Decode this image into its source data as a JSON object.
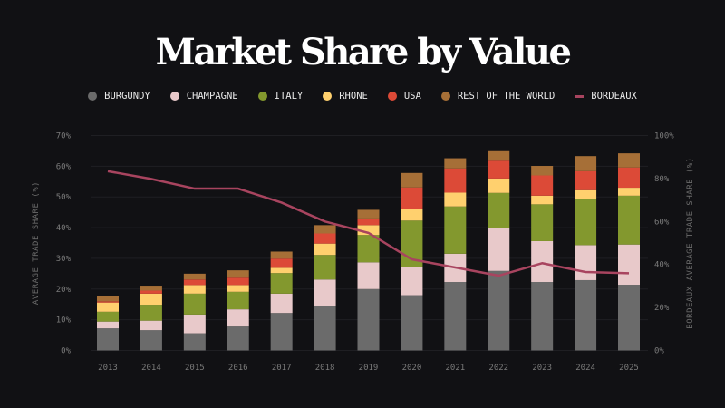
{
  "chart_data": {
    "type": "bar",
    "stacked": true,
    "title": "Market Share by Value",
    "ylabel": "AVERAGE TRADE SHARE (%)",
    "y2label": "BORDEAUX AVERAGE TRADE SHARE (%)",
    "ylim": [
      0,
      70
    ],
    "y2lim": [
      0,
      100
    ],
    "yticks": [
      "0%",
      "10%",
      "20%",
      "30%",
      "40%",
      "50%",
      "60%",
      "70%"
    ],
    "y2ticks": [
      "0%",
      "20%",
      "40%",
      "60%",
      "80%",
      "100%"
    ],
    "grid": true,
    "legend_position": "top",
    "categories": [
      "2013",
      "2014",
      "2015",
      "2016",
      "2017",
      "2018",
      "2019",
      "2020",
      "2021",
      "2022",
      "2023",
      "2024",
      "2025"
    ],
    "series": [
      {
        "name": "BURGUNDY",
        "color": "#6b6b6b",
        "values": [
          7.2,
          6.6,
          5.6,
          7.8,
          12.2,
          14.6,
          20.0,
          18.0,
          22.3,
          25.9,
          22.3,
          22.9,
          21.4
        ]
      },
      {
        "name": "CHAMPAGNE",
        "color": "#e8c9ca",
        "values": [
          2.2,
          3.1,
          6.1,
          5.6,
          6.3,
          8.5,
          8.7,
          9.3,
          9.2,
          14.1,
          13.3,
          11.4,
          13.1
        ]
      },
      {
        "name": "ITALY",
        "color": "#83982e",
        "values": [
          3.2,
          5.2,
          6.8,
          5.7,
          6.7,
          8.0,
          8.9,
          15.0,
          15.4,
          11.3,
          12.0,
          15.1,
          15.9
        ]
      },
      {
        "name": "RHONE",
        "color": "#ffd06e",
        "values": [
          3.0,
          3.6,
          2.8,
          2.2,
          1.7,
          3.7,
          3.2,
          3.8,
          4.5,
          4.7,
          2.8,
          2.8,
          2.6
        ]
      },
      {
        "name": "USA",
        "color": "#dc4a37",
        "values": [
          0.4,
          1.0,
          1.8,
          2.4,
          3.0,
          3.3,
          2.2,
          7.0,
          7.9,
          5.8,
          6.6,
          6.2,
          6.6
        ]
      },
      {
        "name": "REST OF THE WORLD",
        "color": "#a66f37",
        "values": [
          1.8,
          1.6,
          1.9,
          2.4,
          2.3,
          2.7,
          2.8,
          4.7,
          3.3,
          3.4,
          3.1,
          4.9,
          4.6
        ]
      }
    ],
    "line_series": {
      "name": "BORDEAUX",
      "color": "#a8445f",
      "axis": "right",
      "values": [
        83.4,
        79.8,
        75.3,
        75.3,
        68.8,
        60.0,
        54.7,
        42.4,
        38.6,
        34.8,
        40.6,
        36.5,
        35.9
      ]
    }
  }
}
